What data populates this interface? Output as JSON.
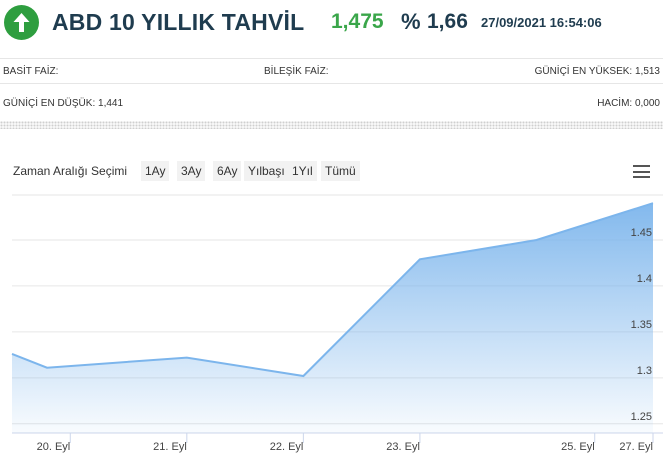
{
  "header": {
    "title": "ABD 10 YILLIK TAHVİL",
    "price": "1,475",
    "percent_sign": "%",
    "percent_value": "1,66",
    "datetime": "27/09/2021 16:54:06",
    "trend_icon": "arrow-up-icon",
    "trend_color": "#2e9e3f",
    "price_color": "#3aa64a",
    "title_color": "#1f3c4f"
  },
  "info": {
    "basit_faiz": "BASİT FAİZ:",
    "bilesik_faiz": "BİLEŞİK FAİZ:",
    "gunici_en_yuksek": "GÜNİÇİ EN YÜKSEK: 1,513",
    "gunici_en_dusuk": "GÜNİÇİ EN DÜŞÜK: 1,441",
    "hacim": "HACİM: 0,000"
  },
  "range": {
    "label": "Zaman Aralığı Seçimi",
    "buttons": [
      "1Ay",
      "3Ay",
      "6Ay",
      "Yılbaşı",
      "1Yıl",
      "Tümü"
    ]
  },
  "menu_icon": "hamburger-menu-icon",
  "chart_data": {
    "type": "area",
    "line_color": "#7cb5ec",
    "x_labels": [
      "20. Eyl",
      "21. Eyl",
      "22. Eyl",
      "23. Eyl",
      "25. Eyl",
      "27. Eyl"
    ],
    "x_label_positions": [
      0.5,
      1.5,
      2.5,
      3.5,
      5,
      5.5
    ],
    "series": [
      {
        "x": [
          0,
          0.3,
          1.5,
          2.5,
          3.5,
          4.5,
          5.5
        ],
        "values": [
          1.326,
          1.311,
          1.322,
          1.302,
          1.429,
          1.45,
          1.49
        ]
      }
    ],
    "x_range": [
      0,
      5.5
    ],
    "ylim": [
      1.24,
      1.5
    ],
    "yticks": [
      1.25,
      1.3,
      1.35,
      1.4,
      1.45
    ],
    "ytick_labels": [
      "1.25",
      "1.3",
      "1.35",
      "1.4",
      "1.45"
    ],
    "grid": true,
    "y_axis_side": "right"
  }
}
